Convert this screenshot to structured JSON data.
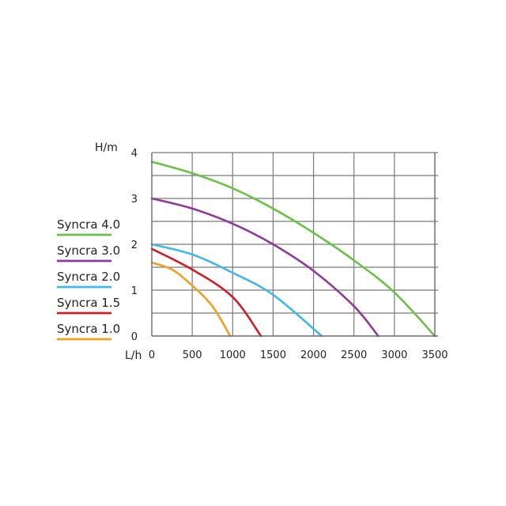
{
  "chart_data": {
    "type": "line",
    "xlabel": "L/h",
    "ylabel": "H/m",
    "xlim": [
      0,
      3500
    ],
    "ylim": [
      0,
      4
    ],
    "xticks": [
      "0",
      "500",
      "1000",
      "1500",
      "2000",
      "2500",
      "3000",
      "3500"
    ],
    "yticks": [
      "0",
      "1",
      "2",
      "3",
      "4"
    ],
    "grid": true,
    "legend_position": "left",
    "series": [
      {
        "name": "Syncra 4.0",
        "color": "#6cc04a",
        "x": [
          0,
          500,
          1000,
          1500,
          2000,
          2500,
          3000,
          3500
        ],
        "y": [
          3.8,
          3.55,
          3.22,
          2.78,
          2.25,
          1.65,
          0.95,
          0.0
        ]
      },
      {
        "name": "Syncra 3.0",
        "color": "#8e3a9b",
        "x": [
          0,
          500,
          1000,
          1500,
          2000,
          2500,
          2800
        ],
        "y": [
          3.0,
          2.78,
          2.45,
          2.0,
          1.42,
          0.65,
          0.0
        ]
      },
      {
        "name": "Syncra 2.0",
        "color": "#3fb8e8",
        "x": [
          0,
          500,
          1000,
          1500,
          2100
        ],
        "y": [
          2.0,
          1.78,
          1.38,
          0.9,
          0.0
        ]
      },
      {
        "name": "Syncra 1.5",
        "color": "#cc1f2a",
        "x": [
          0,
          500,
          1000,
          1350
        ],
        "y": [
          1.9,
          1.45,
          0.85,
          0.0
        ]
      },
      {
        "name": "Syncra 1.0",
        "color": "#f0a020",
        "x": [
          0,
          250,
          500,
          750,
          970
        ],
        "y": [
          1.6,
          1.45,
          1.1,
          0.65,
          0.0
        ]
      }
    ]
  }
}
